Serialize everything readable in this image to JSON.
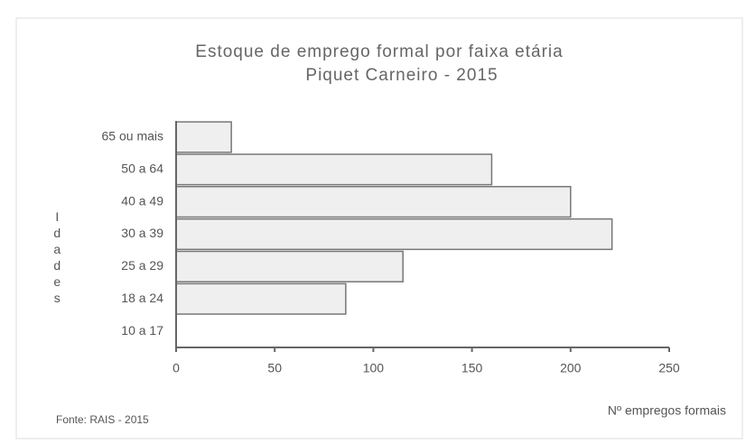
{
  "chart_data": {
    "type": "barh",
    "title": "Estoque de emprego formal por faixa etária",
    "subtitle": "Piquet Carneiro - 2015",
    "ylabel": "Idades",
    "xlabel": "Nº empregos formais",
    "source": "Fonte: RAIS - 2015",
    "categories": [
      "65 ou mais",
      "50 a 64",
      "40 a 49",
      "30 a 39",
      "25 a 29",
      "18 a 24",
      "10 a 17"
    ],
    "values": [
      28,
      160,
      200,
      221,
      115,
      86,
      0
    ],
    "color": "#efefef",
    "xlim": [
      0,
      250
    ],
    "xticks": [
      0,
      50,
      100,
      150,
      200,
      250
    ],
    "grid": false
  }
}
